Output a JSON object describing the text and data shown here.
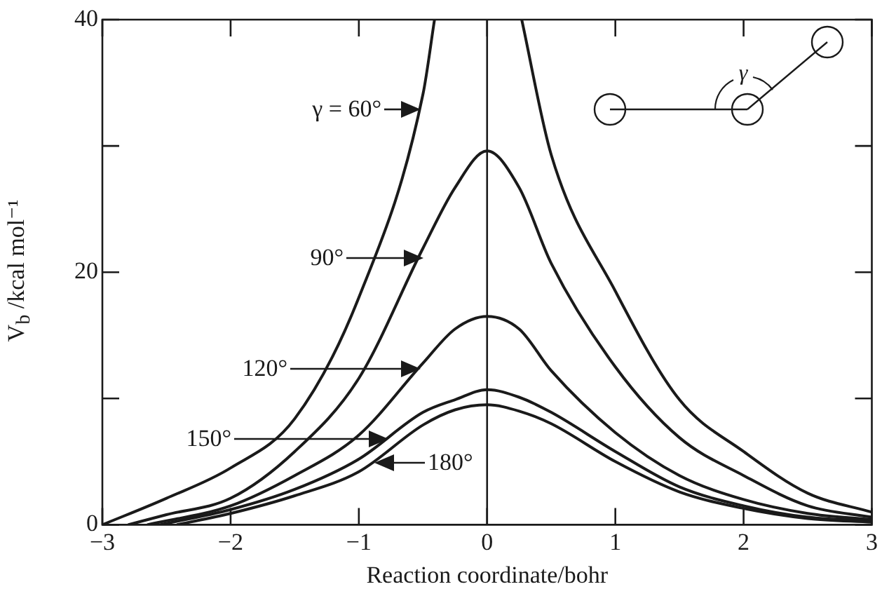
{
  "chart_data": {
    "type": "line",
    "xlabel": "Reaction coordinate/bohr",
    "ylabel": "V$_{b}$ /kcal mol⁻¹",
    "xlim": [
      -3,
      3
    ],
    "xticks": [
      -3,
      -2,
      -1,
      0,
      1,
      2,
      3
    ],
    "ylim": [
      0,
      40
    ],
    "yticks": [
      0,
      {
        "value": 10,
        "label": null
      },
      20,
      {
        "value": 30,
        "label": null
      },
      40
    ],
    "grid": false,
    "ref_lines": [
      {
        "axis": "x",
        "value": 0,
        "color": "#1a1a1a"
      }
    ],
    "annotations": [
      "γ",
      "γ = 60°",
      "90°",
      "120°",
      "150°",
      "180°"
    ],
    "series": [
      {
        "color": "#1a1a1a",
        "x": [
          -3,
          -2.5,
          -2,
          -1.5,
          -1,
          -0.5,
          -0.41,
          0,
          0.27,
          0.5,
          1,
          1.5,
          2,
          2.5,
          3
        ],
        "values": [
          0,
          2.1,
          4.5,
          8.4,
          18,
          34.1,
          40,
          null,
          40,
          29.3,
          18.5,
          9.9,
          5.8,
          2.5,
          1.0
        ]
      },
      {
        "color": "#1a1a1a",
        "x": [
          -2.8,
          -2.5,
          -2,
          -1.5,
          -1,
          -0.5,
          -0.25,
          0,
          0.25,
          0.5,
          1,
          1.5,
          2,
          2.5,
          3
        ],
        "values": [
          0,
          0.8,
          2.1,
          5.8,
          11.6,
          21.9,
          26.7,
          29.6,
          26.7,
          20.7,
          12.5,
          6.9,
          3.9,
          1.5,
          0.6
        ]
      },
      {
        "color": "#1a1a1a",
        "x": [
          -2.65,
          -2,
          -1.5,
          -1,
          -0.5,
          -0.25,
          0,
          0.25,
          0.5,
          1,
          1.5,
          2,
          2.5,
          3
        ],
        "values": [
          0,
          1.5,
          3.9,
          7.1,
          12.8,
          15.5,
          16.5,
          15.5,
          12.2,
          7.3,
          3.9,
          2.0,
          0.9,
          0.4
        ]
      },
      {
        "color": "#1a1a1a",
        "x": [
          -2.55,
          -2,
          -1.5,
          -1,
          -0.5,
          -0.25,
          0,
          0.25,
          0.5,
          1,
          1.5,
          2,
          2.5,
          3
        ],
        "values": [
          0,
          1.2,
          2.8,
          5.2,
          8.9,
          9.9,
          10.7,
          10.1,
          8.9,
          5.8,
          3.0,
          1.5,
          0.6,
          0.3
        ]
      },
      {
        "color": "#1a1a1a",
        "x": [
          -2.42,
          -2,
          -1.5,
          -1,
          -0.5,
          -0.25,
          0,
          0.25,
          0.5,
          1,
          1.5,
          2,
          2.5,
          3
        ],
        "values": [
          0,
          0.9,
          2.3,
          4.2,
          7.9,
          9.1,
          9.5,
          9.0,
          8.0,
          5.0,
          2.6,
          1.3,
          0.5,
          0.2
        ]
      }
    ]
  }
}
